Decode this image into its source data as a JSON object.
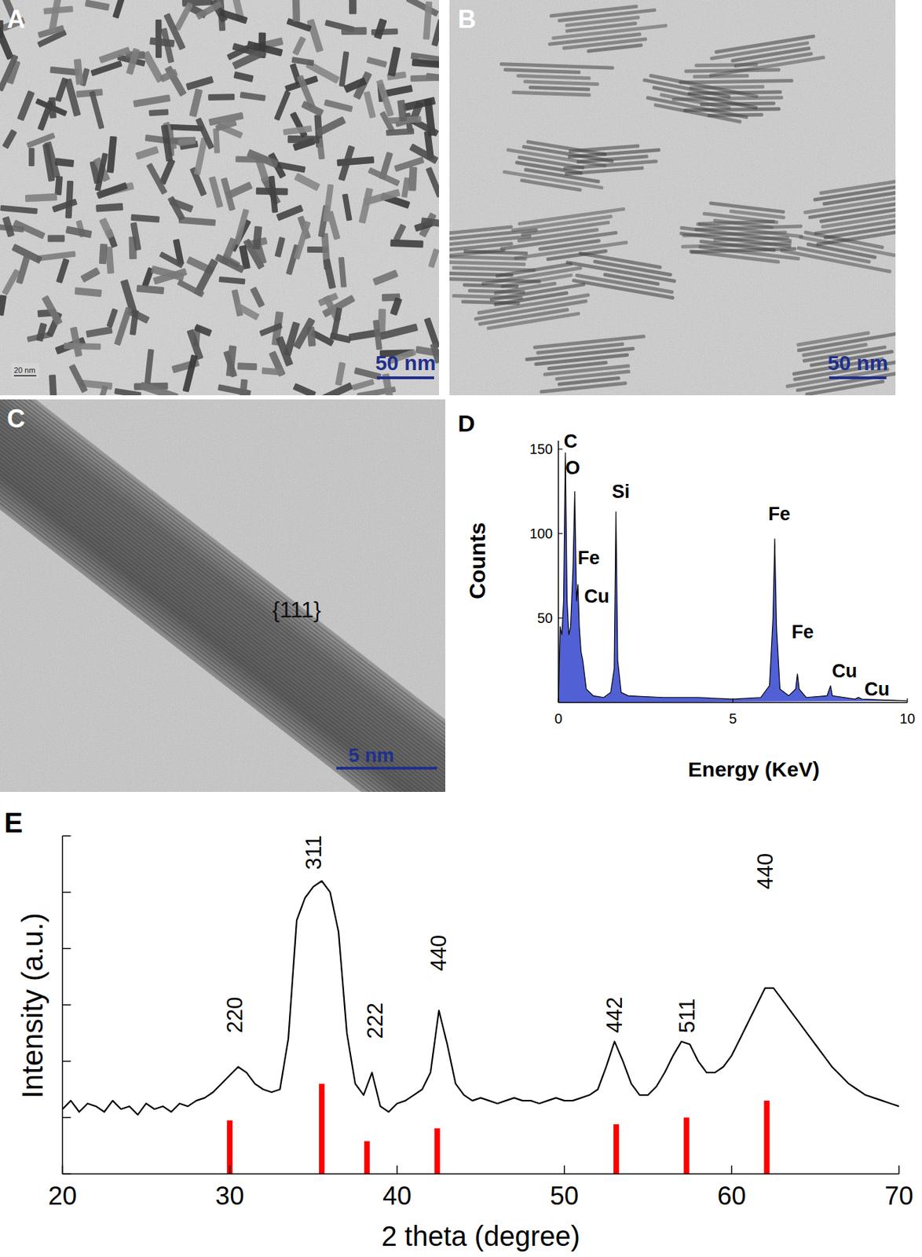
{
  "panels": [
    {
      "label": "A",
      "scale_bar": "50 nm",
      "inset_text": "20 nm"
    },
    {
      "label": "B",
      "scale_bar": "50 nm"
    },
    {
      "label": "C",
      "scale_bar": "5 nm",
      "annotation": "{111}"
    }
  ],
  "chart_data": [
    {
      "label": "D",
      "type": "area",
      "x_label": "Energy (KeV)",
      "y_label": "Counts",
      "xlim": [
        0,
        10
      ],
      "ylim": [
        0,
        155
      ],
      "xticks": [
        0,
        5,
        10
      ],
      "yticks": [
        50,
        100,
        150
      ],
      "color": "#3344cc",
      "x": [
        0,
        0.05,
        0.1,
        0.15,
        0.2,
        0.25,
        0.3,
        0.35,
        0.42,
        0.47,
        0.52,
        0.56,
        0.6,
        0.65,
        0.7,
        0.8,
        1.0,
        1.3,
        1.5,
        1.6,
        1.65,
        1.7,
        1.8,
        2.0,
        3,
        4,
        5,
        5.8,
        6.05,
        6.15,
        6.2,
        6.25,
        6.35,
        6.6,
        6.8,
        6.85,
        6.9,
        7.1,
        7.7,
        7.8,
        7.85,
        8.5,
        8.6,
        8.7,
        10
      ],
      "values": [
        0,
        45,
        40,
        60,
        148,
        60,
        40,
        45,
        80,
        125,
        60,
        70,
        45,
        30,
        25,
        8,
        4,
        3,
        6,
        20,
        113,
        25,
        6,
        4,
        3,
        3,
        2,
        3,
        10,
        50,
        97,
        45,
        8,
        4,
        8,
        17,
        8,
        3,
        4,
        10,
        4,
        2,
        3,
        2,
        1
      ],
      "annotations": [
        {
          "text": "C",
          "x": 0.35,
          "y": 151
        },
        {
          "text": "O",
          "x": 0.41,
          "y": 135
        },
        {
          "text": "Fe",
          "x": 0.87,
          "y": 82
        },
        {
          "text": "Cu",
          "x": 1.1,
          "y": 59
        },
        {
          "text": "Si",
          "x": 1.79,
          "y": 121
        },
        {
          "text": "Fe",
          "x": 6.33,
          "y": 108
        },
        {
          "text": "Fe",
          "x": 7.0,
          "y": 38
        },
        {
          "text": "Cu",
          "x": 8.2,
          "y": 15
        },
        {
          "text": "Cu",
          "x": 9.13,
          "y": 4
        }
      ]
    },
    {
      "label": "E",
      "type": "line",
      "x_label": "2 theta (degree)",
      "y_label": "Intensity (a.u.)",
      "xlim": [
        20,
        70
      ],
      "ylim": [
        0,
        6
      ],
      "xticks": [
        20,
        30,
        40,
        50,
        60,
        70
      ],
      "yticks": [
        0,
        1,
        2,
        3,
        4,
        5,
        6
      ],
      "tick_labels": "x",
      "series": [
        {
          "type": "line",
          "color": "#000000",
          "x": [
            20,
            20.5,
            21,
            21.5,
            22,
            22.5,
            23,
            23.5,
            24,
            24.5,
            25,
            25.5,
            26,
            26.5,
            27,
            27.5,
            28,
            28.5,
            29,
            29.5,
            30,
            30.5,
            31,
            31.5,
            32,
            32.5,
            33,
            33.5,
            34,
            34.5,
            35,
            35.5,
            36,
            36.5,
            37,
            37.5,
            38,
            38.5,
            39,
            39.5,
            40,
            40.5,
            41,
            41.5,
            42,
            42.5,
            43,
            43.5,
            44,
            44.5,
            45,
            45.5,
            46,
            46.5,
            47,
            47.5,
            48,
            48.5,
            49,
            49.5,
            50,
            50.5,
            51,
            51.5,
            52,
            52.5,
            53,
            53.5,
            54,
            54.5,
            55,
            55.5,
            56,
            56.5,
            57,
            57.5,
            58,
            58.5,
            59,
            59.5,
            60,
            60.5,
            61,
            61.5,
            62,
            62.5,
            63,
            63.5,
            64,
            64.5,
            65,
            65.5,
            66,
            66.5,
            67,
            67.5,
            68,
            68.5,
            69,
            69.5,
            70
          ],
          "values": [
            1.15,
            1.3,
            1.1,
            1.25,
            1.2,
            1.1,
            1.3,
            1.15,
            1.2,
            1.05,
            1.25,
            1.15,
            1.2,
            1.1,
            1.25,
            1.2,
            1.3,
            1.35,
            1.45,
            1.6,
            1.75,
            1.9,
            1.8,
            1.6,
            1.5,
            1.45,
            1.5,
            2.4,
            4.5,
            4.9,
            5.1,
            5.2,
            5.0,
            4.3,
            2.5,
            1.6,
            1.4,
            1.8,
            1.2,
            1.1,
            1.25,
            1.3,
            1.4,
            1.5,
            1.8,
            2.9,
            2.3,
            1.6,
            1.4,
            1.3,
            1.35,
            1.3,
            1.25,
            1.3,
            1.35,
            1.3,
            1.3,
            1.25,
            1.3,
            1.35,
            1.3,
            1.3,
            1.35,
            1.4,
            1.5,
            1.9,
            2.35,
            2.0,
            1.6,
            1.4,
            1.4,
            1.55,
            1.8,
            2.1,
            2.35,
            2.3,
            2.0,
            1.8,
            1.8,
            1.9,
            2.1,
            2.4,
            2.7,
            3.0,
            3.3,
            3.3,
            3.1,
            2.9,
            2.7,
            2.5,
            2.3,
            2.1,
            1.9,
            1.75,
            1.6,
            1.5,
            1.4,
            1.35,
            1.3,
            1.25,
            1.2
          ]
        },
        {
          "type": "bar",
          "color": "#ff0000",
          "x": [
            30.0,
            35.5,
            38.2,
            42.4,
            53.1,
            57.3,
            62.1
          ],
          "values": [
            0.95,
            1.6,
            0.58,
            0.81,
            0.88,
            1.0,
            1.3
          ]
        }
      ],
      "annotations": [
        {
          "text": "220",
          "x": 30.3,
          "y": 2.5
        },
        {
          "text": "311",
          "x": 35.0,
          "y": 5.4
        },
        {
          "text": "222",
          "x": 38.7,
          "y": 2.4
        },
        {
          "text": "440",
          "x": 42.5,
          "y": 3.6
        },
        {
          "text": "442",
          "x": 53.0,
          "y": 2.5
        },
        {
          "text": "511",
          "x": 57.35,
          "y": 2.5
        },
        {
          "text": "440",
          "x": 62.0,
          "y": 5.05
        }
      ]
    }
  ]
}
